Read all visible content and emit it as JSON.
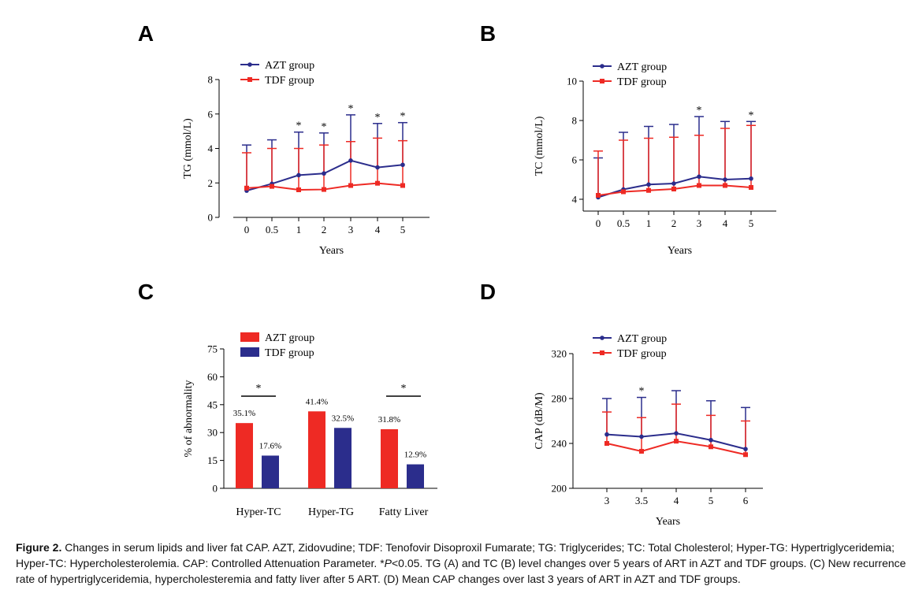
{
  "colors": {
    "azt": "#2b2d8c",
    "tdf": "#ee2a24"
  },
  "caption": {
    "label": "Figure 2.",
    "part1": " Changes in serum lipids and liver fat CAP. AZT, Zidovudine; TDF: Tenofovir Disoproxil Fumarate; TG: Triglycerides; TC: Total Cholesterol; Hyper-TG: Hypertriglyceridemia; Hyper-TC: Hypercholesterolemia. CAP: Controlled Attenuation Parameter. *",
    "pval": "P",
    "part2": "<0.05. TG (A) and TC (B) level changes over 5 years of ART in AZT and TDF groups. (C) New recurrence rate of hypertriglyceridemia, hypercholesteremia and fatty liver after 5 ART. (D) Mean CAP changes over last 3 years of ART in AZT and TDF groups."
  },
  "chart_data": [
    {
      "panel": "A",
      "type": "line",
      "xlabel": "Years",
      "ylabel": "TG (mmol/L)",
      "categories": [
        "0",
        "0.5",
        "1",
        "2",
        "3",
        "4",
        "5"
      ],
      "ylim": [
        0,
        8
      ],
      "yticks": [
        0,
        2,
        4,
        6,
        8
      ],
      "legend": "top-left",
      "series": [
        {
          "name": "AZT group",
          "color": "#2b2d8c",
          "values": [
            1.55,
            1.95,
            2.45,
            2.55,
            3.3,
            2.9,
            3.05
          ],
          "err_upper": [
            4.2,
            4.5,
            4.95,
            4.9,
            5.95,
            5.45,
            5.5
          ]
        },
        {
          "name": "TDF group",
          "color": "#ee2a24",
          "values": [
            1.7,
            1.8,
            1.6,
            1.62,
            1.85,
            1.98,
            1.85
          ],
          "err_upper": [
            3.75,
            4.0,
            4.0,
            4.2,
            4.4,
            4.6,
            4.45
          ]
        }
      ],
      "significance": [
        "",
        "",
        "*",
        "*",
        "*",
        "*",
        "*"
      ]
    },
    {
      "panel": "B",
      "type": "line",
      "xlabel": "Years",
      "ylabel": "TC (mmol/L)",
      "categories": [
        "0",
        "0.5",
        "1",
        "2",
        "3",
        "4",
        "5"
      ],
      "ylim": [
        3.4,
        10
      ],
      "yticks": [
        4,
        6,
        8,
        10
      ],
      "legend": "top-left",
      "series": [
        {
          "name": "AZT group",
          "color": "#2b2d8c",
          "values": [
            4.1,
            4.5,
            4.75,
            4.8,
            5.15,
            5.0,
            5.05
          ],
          "err_upper": [
            6.1,
            7.4,
            7.7,
            7.8,
            8.2,
            7.95,
            7.95
          ]
        },
        {
          "name": "TDF group",
          "color": "#ee2a24",
          "values": [
            4.2,
            4.38,
            4.45,
            4.52,
            4.7,
            4.7,
            4.6
          ],
          "err_upper": [
            6.45,
            7.0,
            7.1,
            7.15,
            7.25,
            7.6,
            7.75
          ]
        }
      ],
      "significance": [
        "",
        "",
        "",
        "",
        "*",
        "",
        "*"
      ]
    },
    {
      "panel": "C",
      "type": "bar",
      "xlabel": "",
      "ylabel": "% of abnormality",
      "categories": [
        "Hyper-TC",
        "Hyper-TG",
        "Fatty Liver"
      ],
      "ylim": [
        0,
        75
      ],
      "yticks": [
        0,
        15,
        30,
        45,
        60,
        75
      ],
      "legend": "top-left",
      "series": [
        {
          "name": "AZT group",
          "color": "#ee2a24",
          "values": [
            35.1,
            41.4,
            31.8
          ],
          "labels": [
            "35.1%",
            "41.4%",
            "31.8%"
          ]
        },
        {
          "name": "TDF group",
          "color": "#2b2d8c",
          "values": [
            17.6,
            32.5,
            12.9
          ],
          "labels": [
            "17.6%",
            "32.5%",
            "12.9%"
          ]
        }
      ],
      "significance": [
        "*",
        "",
        "*"
      ]
    },
    {
      "panel": "D",
      "type": "line",
      "xlabel": "Years",
      "ylabel": "CAP (dB/M)",
      "categories": [
        "3",
        "3.5",
        "4",
        "5",
        "6"
      ],
      "ylim": [
        200,
        320
      ],
      "yticks": [
        200,
        240,
        280,
        320
      ],
      "legend": "top-left",
      "series": [
        {
          "name": "AZT group",
          "color": "#2b2d8c",
          "values": [
            248,
            246,
            249,
            243,
            235
          ],
          "err_upper": [
            280,
            281,
            287,
            278,
            272
          ]
        },
        {
          "name": "TDF group",
          "color": "#ee2a24",
          "values": [
            240,
            233,
            242,
            237,
            230
          ],
          "err_upper": [
            268,
            263,
            275,
            265,
            260
          ]
        }
      ],
      "significance": [
        "",
        "*",
        "",
        "",
        ""
      ]
    }
  ]
}
